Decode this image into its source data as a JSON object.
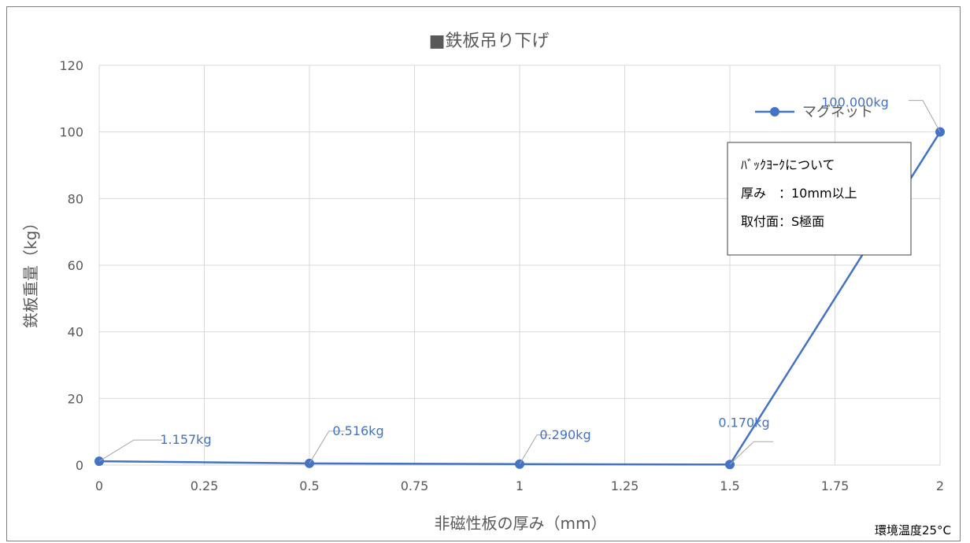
{
  "chart_data": {
    "type": "scatter",
    "title": "■鉄板吊り下げ",
    "xlabel": "非磁性板の厚み（mm）",
    "ylabel": "鉄板重量（kg）",
    "xlim": [
      0,
      2
    ],
    "ylim": [
      0,
      120
    ],
    "xticks": [
      "0",
      "0.25",
      "0.5",
      "0.75",
      "1",
      "1.25",
      "1.5",
      "1.75",
      "2"
    ],
    "yticks": [
      "0",
      "20",
      "40",
      "60",
      "80",
      "100",
      "120"
    ],
    "grid": true,
    "legend_position": "top-right",
    "series": [
      {
        "name": "マグネット",
        "color": "#4472c4",
        "x": [
          0,
          0.5,
          1,
          1.5,
          2
        ],
        "y": [
          1.157,
          0.516,
          0.29,
          0.17,
          100
        ],
        "labels": [
          "1.157kg",
          "0.516kg",
          "0.290kg",
          "0.170kg",
          "100.000kg"
        ]
      }
    ],
    "annotation": {
      "lines": [
        "ﾊﾞｯｸﾖｰｸについて",
        "厚み　：10mm以上",
        "取付面：S極面"
      ]
    },
    "footnote": "環境温度25°C"
  }
}
